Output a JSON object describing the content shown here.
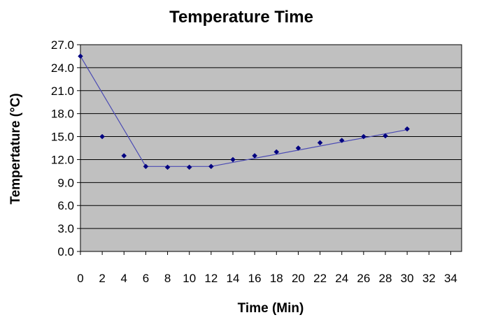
{
  "chart_data": {
    "type": "scatter",
    "title": "Temperature Time",
    "xlabel": "Time (Min)",
    "ylabel": "Tempertature (°C)",
    "xlim": [
      0,
      35
    ],
    "ylim": [
      0,
      27
    ],
    "xticks": [
      "0",
      "2",
      "4",
      "6",
      "8",
      "10",
      "12",
      "14",
      "16",
      "18",
      "20",
      "22",
      "24",
      "26",
      "28",
      "30",
      "32",
      "34"
    ],
    "yticks": [
      "0.0",
      "3.0",
      "6.0",
      "9.0",
      "12.0",
      "15.0",
      "18.0",
      "21.0",
      "24.0",
      "27.0"
    ],
    "grid": true,
    "legend": "none",
    "colors": {
      "plot_bg": "#c0c0c0",
      "marker": "#000080",
      "trendline": "#4b4bb4",
      "grid": "#000000"
    },
    "series": [
      {
        "x": [
          0,
          2,
          4,
          6,
          8,
          10,
          12,
          14,
          16,
          18,
          20,
          22,
          24,
          26,
          28,
          30
        ],
        "y": [
          25.5,
          15.0,
          12.5,
          11.1,
          11.0,
          11.0,
          11.1,
          12.0,
          12.5,
          13.0,
          13.5,
          14.2,
          14.5,
          15.0,
          15.1,
          16.0
        ]
      }
    ],
    "trendline": {
      "x": [
        0,
        6,
        12,
        30
      ],
      "y": [
        25.5,
        11.1,
        11.1,
        15.9
      ]
    }
  }
}
